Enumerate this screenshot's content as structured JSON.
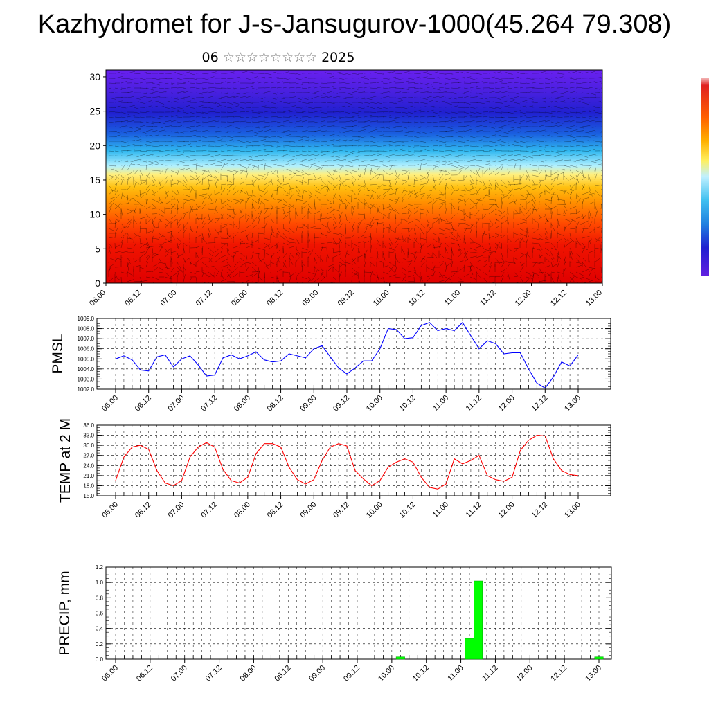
{
  "header": {
    "title": "Kazhydromet for J-s-Jansugurov-1000(45.264 79.308)",
    "subtitle_day": "06",
    "subtitle_stars": "☆☆☆☆☆☆☆☆",
    "subtitle_year": "2025"
  },
  "colors": {
    "pmsl_line": "#0000ff",
    "temp_line": "#ff0000",
    "precip_bar": "#00ff00",
    "grid": "#000000"
  },
  "chart_data": [
    {
      "type": "heatmap",
      "id": "vertical-section",
      "ylim": [
        0,
        31
      ],
      "yticks": [
        "0",
        "5",
        "10",
        "15",
        "20",
        "25",
        "30"
      ],
      "xticks": [
        "06.00",
        "06.12",
        "07.00",
        "07.12",
        "08.00",
        "08.12",
        "09.00",
        "09.12",
        "10.00",
        "10.12",
        "11.00",
        "11.12",
        "12.00",
        "12.12",
        "13.00"
      ],
      "colorbar": "rainbow (red at bottom → yellow → cyan → blue → purple at top)",
      "overlay": "wind vectors"
    },
    {
      "type": "line",
      "id": "pmsl",
      "ylabel": "PMSL",
      "ylim": [
        1002.0,
        1009.0
      ],
      "yticks": [
        "1002.0",
        "1003.0",
        "1004.0",
        "1005.0",
        "1006.0",
        "1007.0",
        "1008.0",
        "1009.0"
      ],
      "xticks": [
        "06.00",
        "06.12",
        "07.00",
        "07.12",
        "08.00",
        "08.12",
        "09.00",
        "09.12",
        "10.00",
        "10.12",
        "11.00",
        "11.12",
        "12.00",
        "12.12",
        "13.00"
      ],
      "values": [
        1005.0,
        1005.3,
        1004.9,
        1003.9,
        1003.8,
        1005.2,
        1005.4,
        1004.2,
        1005.0,
        1005.3,
        1004.4,
        1003.3,
        1003.4,
        1005.1,
        1005.4,
        1005.0,
        1005.3,
        1005.7,
        1004.9,
        1004.7,
        1004.8,
        1005.5,
        1005.3,
        1005.1,
        1006.0,
        1006.3,
        1005.2,
        1004.1,
        1003.5,
        1004.1,
        1004.8,
        1004.8,
        1006.0,
        1008.0,
        1007.9,
        1007.0,
        1007.1,
        1008.3,
        1008.6,
        1007.8,
        1008.0,
        1007.8,
        1008.6,
        1007.3,
        1006.0,
        1006.8,
        1006.5,
        1005.5,
        1005.6,
        1005.6,
        1004.0,
        1002.6,
        1002.1,
        1003.2,
        1004.7,
        1004.3,
        1005.4
      ]
    },
    {
      "type": "line",
      "id": "temp2m",
      "ylabel": "TEMP at 2 M",
      "ylim": [
        15.0,
        36.0
      ],
      "yticks": [
        "15.0",
        "18.0",
        "21.0",
        "24.0",
        "27.0",
        "30.0",
        "33.0",
        "36.0"
      ],
      "xticks": [
        "06.00",
        "06.12",
        "07.00",
        "07.12",
        "08.00",
        "08.12",
        "09.00",
        "09.12",
        "10.00",
        "10.12",
        "11.00",
        "11.12",
        "12.00",
        "12.12",
        "13.00"
      ],
      "values": [
        19.5,
        26.5,
        29.5,
        30.0,
        28.8,
        22.5,
        18.8,
        18.0,
        19.5,
        26.5,
        29.5,
        30.8,
        29.5,
        22.8,
        19.5,
        18.8,
        20.5,
        27.5,
        30.5,
        30.5,
        29.5,
        23.5,
        19.8,
        18.5,
        19.8,
        25.5,
        29.5,
        30.5,
        29.8,
        22.5,
        20.0,
        18.0,
        19.5,
        23.5,
        25.0,
        26.0,
        25.0,
        20.5,
        17.5,
        17.0,
        18.5,
        26.0,
        24.5,
        25.5,
        27.0,
        21.0,
        19.8,
        19.3,
        20.5,
        28.5,
        31.5,
        33.0,
        32.8,
        26.0,
        22.5,
        21.3,
        21.0
      ]
    },
    {
      "type": "bar",
      "id": "precip",
      "ylabel": "PRECIP, mm",
      "ylim": [
        0.0,
        1.2
      ],
      "yticks": [
        "0.0",
        "0.2",
        "0.4",
        "0.6",
        "0.8",
        "1.0",
        "1.2"
      ],
      "xticks": [
        "06.00",
        "06.12",
        "07.00",
        "07.12",
        "08.00",
        "08.12",
        "09.00",
        "09.12",
        "10.00",
        "10.12",
        "11.00",
        "11.12",
        "12.00",
        "12.12",
        "13.00"
      ],
      "bars": [
        {
          "t": 10.125,
          "value": 0.03
        },
        {
          "t": 11.125,
          "value": 0.27
        },
        {
          "t": 11.25,
          "value": 1.02
        },
        {
          "t": 13.0,
          "value": 0.03
        }
      ]
    }
  ]
}
